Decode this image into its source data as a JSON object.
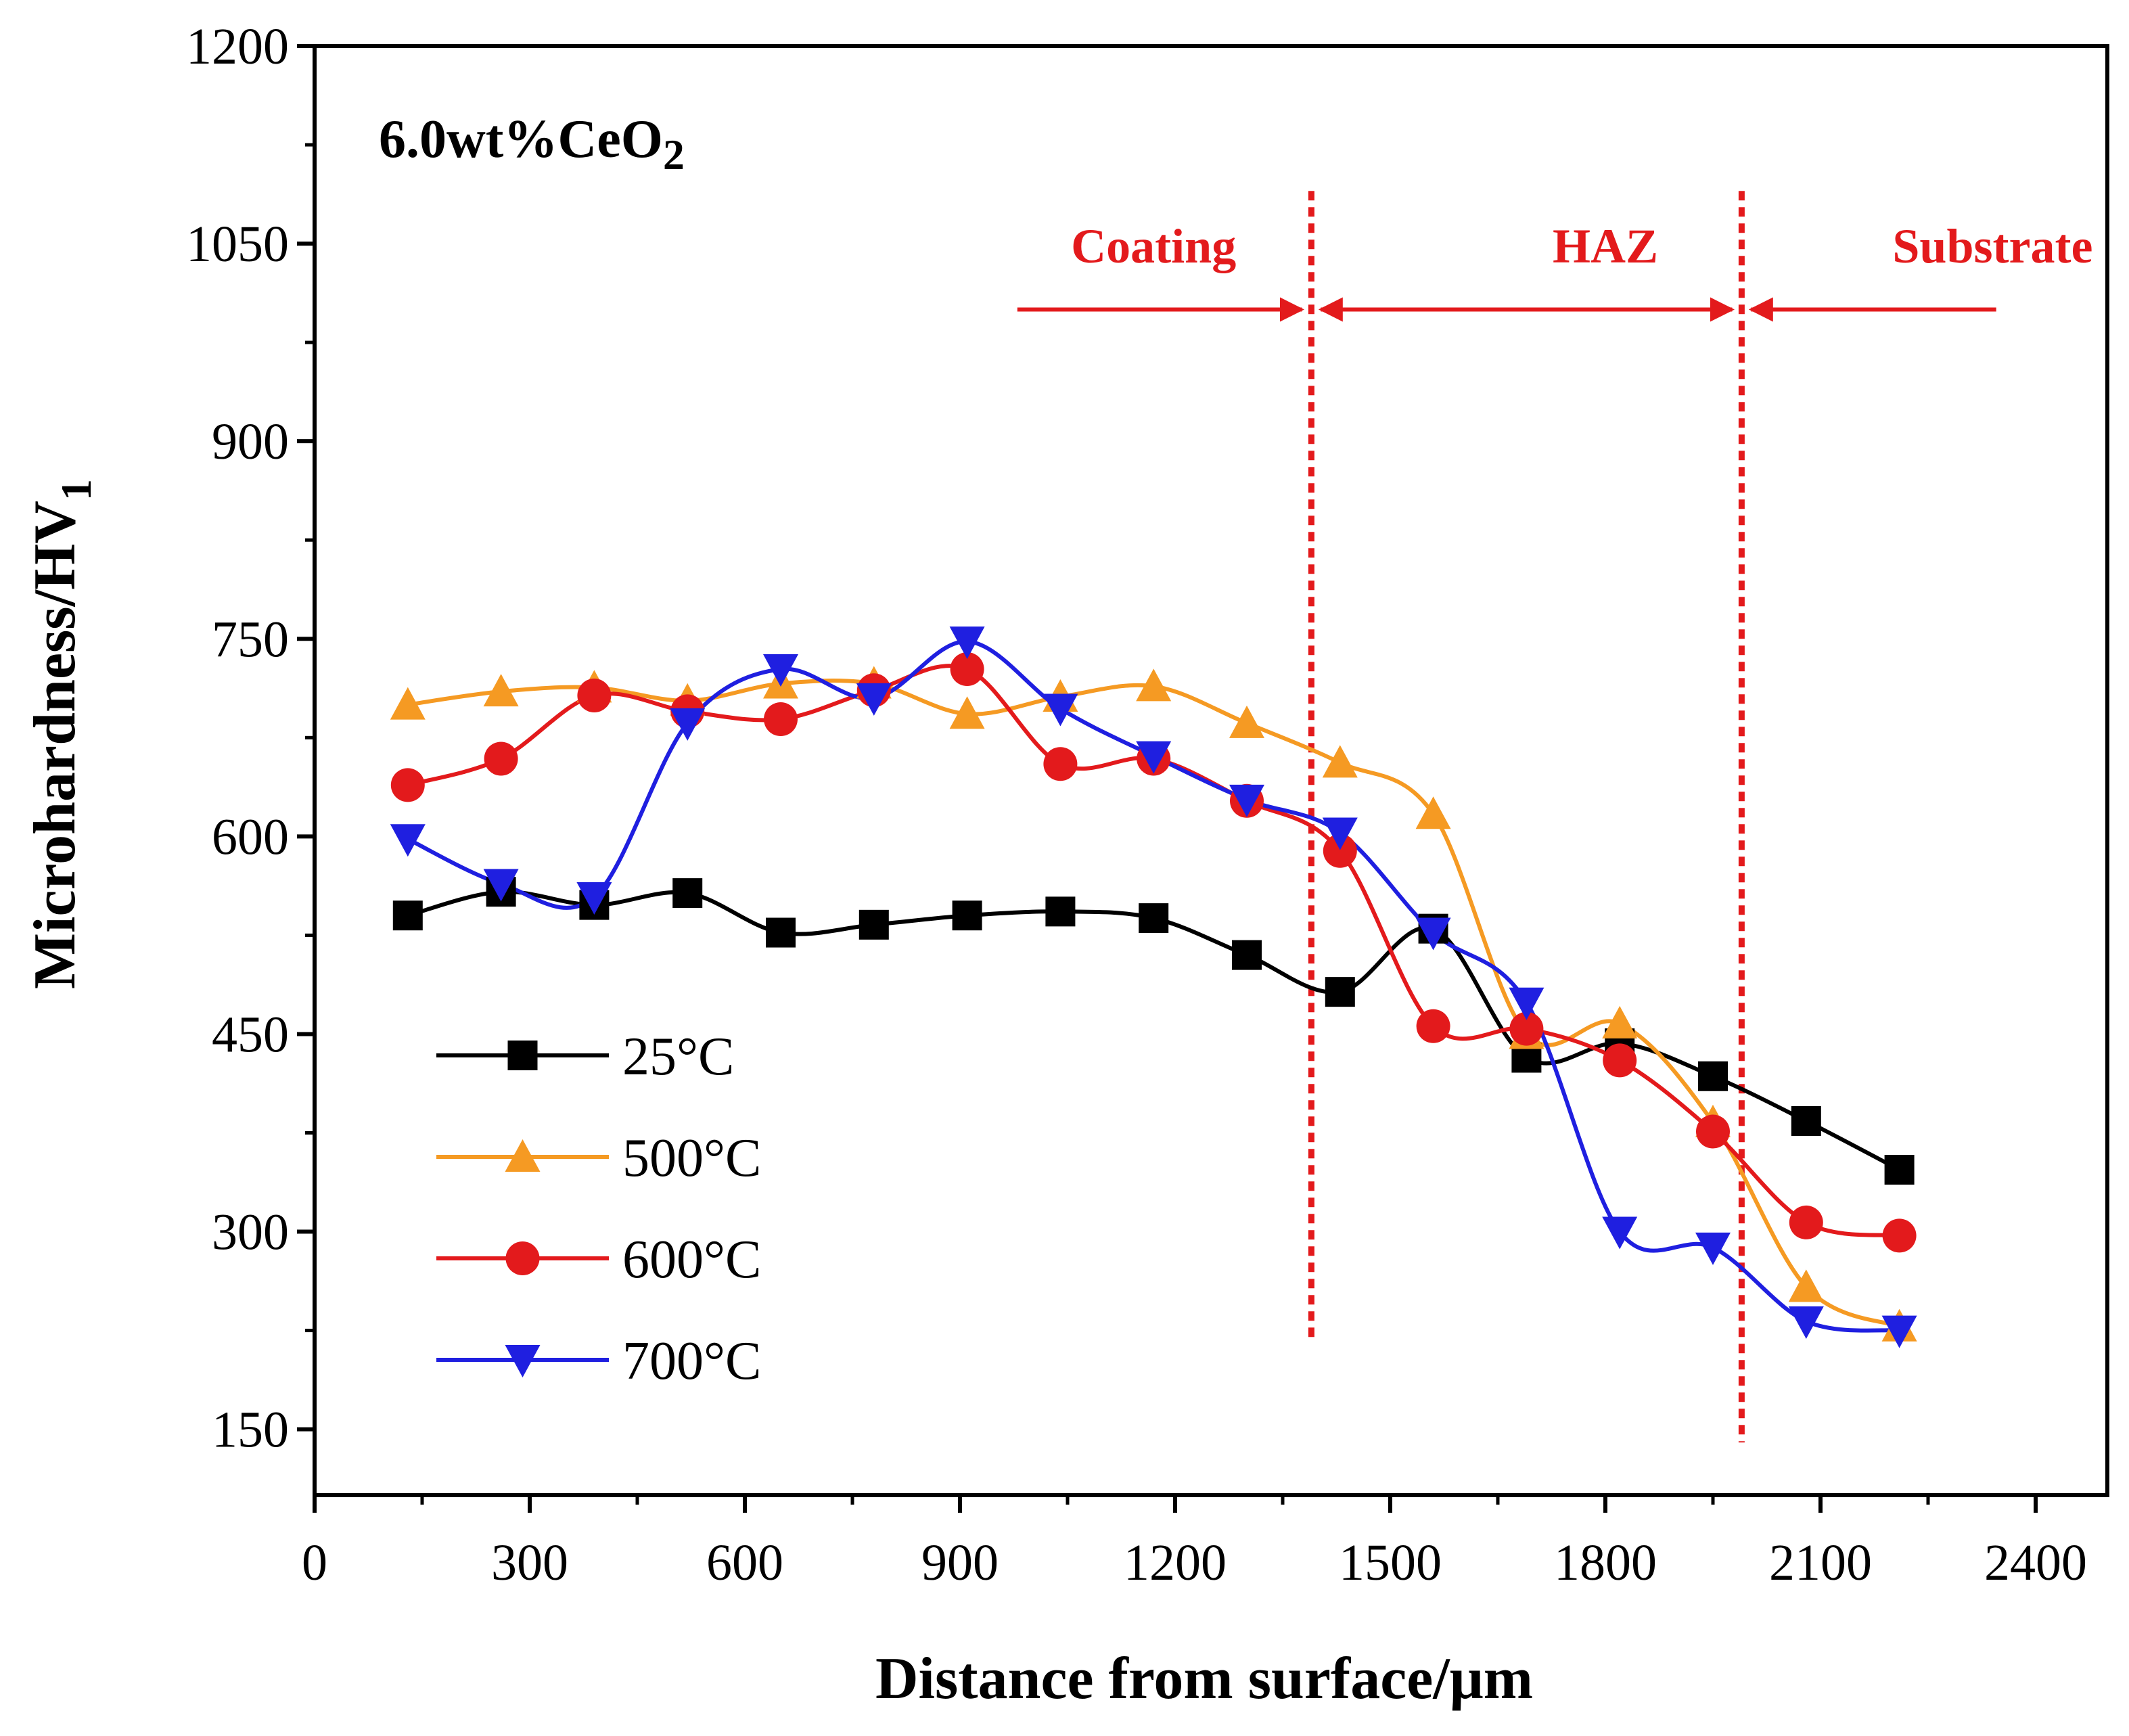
{
  "chart_data": {
    "type": "line",
    "title": "6.0wt%CeO2",
    "title_main": "6.0wt%CeO",
    "title_sub": "2",
    "xlabel": "Distance from surface/μm",
    "ylabel": "Microhardness/HV",
    "ylabel_sub": "1",
    "xlim": [
      0,
      2500
    ],
    "ylim": [
      100,
      1200
    ],
    "xticks": [
      "0",
      "300",
      "600",
      "900",
      "1200",
      "1500",
      "1800",
      "2100",
      "2400"
    ],
    "yticks": [
      "150",
      "300",
      "450",
      "600",
      "750",
      "900",
      "1050",
      "1200"
    ],
    "legend_position": "bottom-left",
    "x": [
      130,
      260,
      390,
      520,
      650,
      780,
      910,
      1040,
      1170,
      1300,
      1430,
      1560,
      1690,
      1820,
      1950,
      2080,
      2210
    ],
    "series": [
      {
        "name": "25°C",
        "color": "#000000",
        "marker": "square",
        "values": [
          540,
          558,
          548,
          557,
          527,
          533,
          540,
          543,
          538,
          510,
          482,
          530,
          432,
          443,
          418,
          384,
          347
        ]
      },
      {
        "name": "500°C",
        "color": "#f59a23",
        "marker": "triangle-up",
        "values": [
          700,
          710,
          713,
          703,
          716,
          716,
          693,
          706,
          714,
          686,
          656,
          617,
          450,
          458,
          383,
          258,
          228
        ]
      },
      {
        "name": "600°C",
        "color": "#e31a1c",
        "marker": "circle",
        "values": [
          639,
          659,
          707,
          695,
          689,
          711,
          727,
          655,
          659,
          627,
          589,
          456,
          454,
          430,
          376,
          307,
          297
        ]
      },
      {
        "name": "700°C",
        "color": "#1f1fe0",
        "marker": "triangle-down",
        "values": [
          598,
          564,
          554,
          686,
          727,
          705,
          748,
          697,
          661,
          628,
          603,
          527,
          474,
          300,
          288,
          232,
          225
        ]
      }
    ],
    "annotations": {
      "zones": [
        {
          "label": "Coating",
          "x_center": 1170
        },
        {
          "label": "HAZ",
          "x_center": 1800
        },
        {
          "label": "Substrate",
          "x_center": 2340
        }
      ],
      "boundaries": [
        {
          "x": 1390,
          "y_from": 220,
          "y_to": 1090
        },
        {
          "x": 1990,
          "y_from": 140,
          "y_to": 1090
        }
      ],
      "arrows": [
        {
          "from": 980,
          "to": 1390,
          "y": 1000
        },
        {
          "from": 1390,
          "to": 1990,
          "y": 1000,
          "double": true
        },
        {
          "from": 2345,
          "to": 1990,
          "y": 1000
        }
      ]
    },
    "accent_color": "#e31a1c"
  }
}
